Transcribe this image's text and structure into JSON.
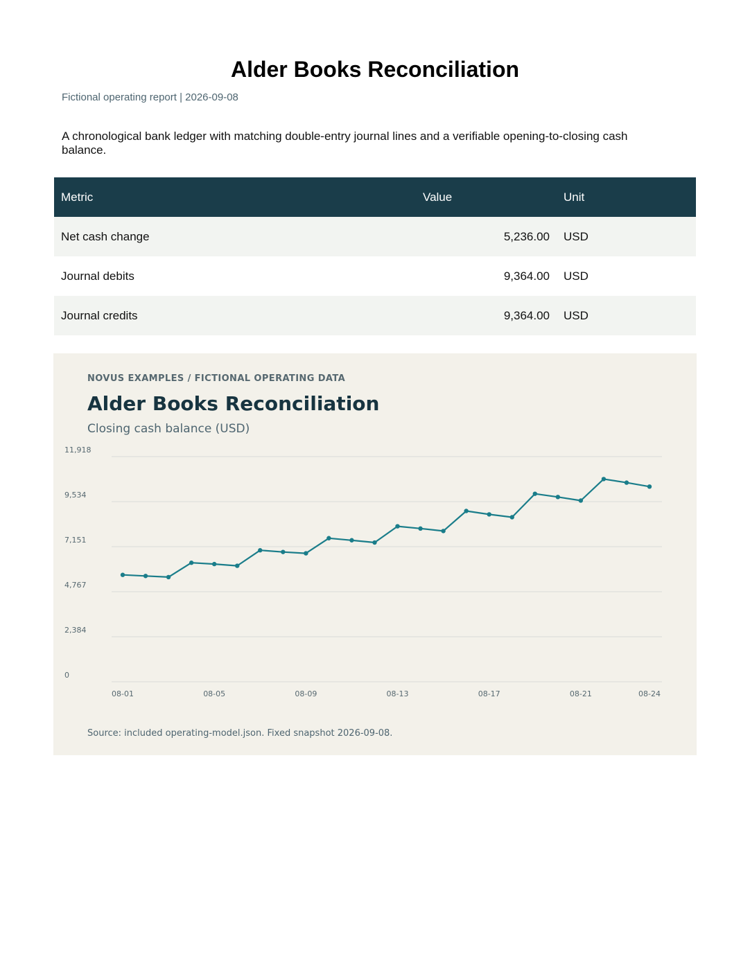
{
  "report": {
    "title": "Alder Books Reconciliation",
    "subtitle": "Fictional operating report | 2026-09-08",
    "description": "A chronological bank ledger with matching double-entry journal lines and a verifiable opening-to-closing cash balance."
  },
  "metrics_table": {
    "headers": [
      "Metric",
      "Value",
      "Unit"
    ],
    "rows": [
      {
        "metric": "Net cash change",
        "value": "5,236.00",
        "unit": "USD"
      },
      {
        "metric": "Journal debits",
        "value": "9,364.00",
        "unit": "USD"
      },
      {
        "metric": "Journal credits",
        "value": "9,364.00",
        "unit": "USD"
      }
    ]
  },
  "chart_panel": {
    "kicker": "NOVUS EXAMPLES  /  FICTIONAL OPERATING DATA",
    "title": "Alder Books Reconciliation",
    "subtitle": "Closing cash balance (USD)",
    "source": "Source: included operating-model.json. Fixed snapshot 2026-09-08."
  },
  "colors": {
    "header_bg": "#1a3d4a",
    "series": "#1a7d8a",
    "panel_bg": "#f3f1ea"
  },
  "chart_data": {
    "type": "line",
    "title": "Alder Books Reconciliation",
    "subtitle": "Closing cash balance (USD)",
    "xlabel": "",
    "ylabel": "",
    "ylim": [
      0,
      11918
    ],
    "y_ticks": [
      0,
      2384,
      4767,
      7151,
      9534,
      11918
    ],
    "y_tick_labels": [
      "0",
      "2,384",
      "4,767",
      "7,151",
      "9,534",
      "11,918"
    ],
    "x_tick_labels": [
      "08-01",
      "08-05",
      "08-09",
      "08-13",
      "08-17",
      "08-21",
      "08-24"
    ],
    "grid": true,
    "x": [
      "08-01",
      "08-02",
      "08-03",
      "08-04",
      "08-05",
      "08-06",
      "08-07",
      "08-08",
      "08-09",
      "08-10",
      "08-11",
      "08-12",
      "08-13",
      "08-14",
      "08-15",
      "08-16",
      "08-17",
      "08-18",
      "08-19",
      "08-20",
      "08-21",
      "08-22",
      "08-23",
      "08-24"
    ],
    "series": [
      {
        "values": [
          5658,
          5600,
          5540,
          6300,
          6230,
          6140,
          6960,
          6870,
          6800,
          7600,
          7490,
          7370,
          8230,
          8110,
          7980,
          9040,
          8860,
          8710,
          9950,
          9780,
          9590,
          10730,
          10540,
          10330
        ]
      }
    ]
  }
}
